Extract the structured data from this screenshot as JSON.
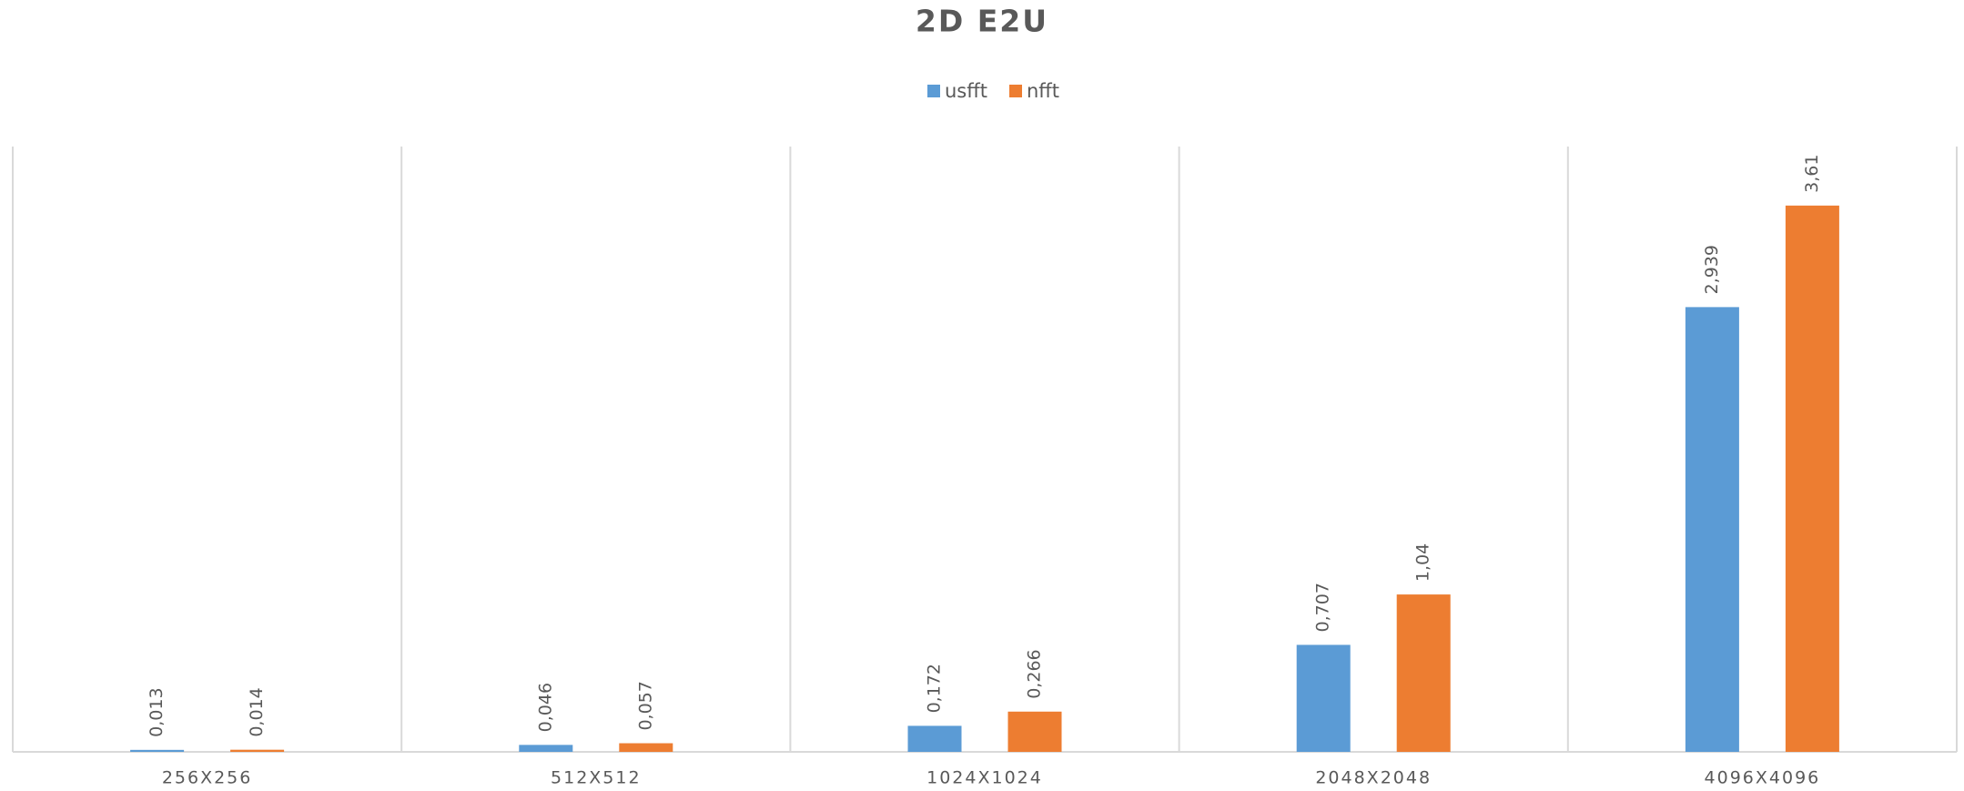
{
  "chart_data": {
    "type": "bar",
    "title": "2D E2U",
    "categories": [
      "256X256",
      "512X512",
      "1024X1024",
      "2048X2048",
      "4096X4096"
    ],
    "series": [
      {
        "name": "usfft",
        "color": "#5b9bd5",
        "values": [
          0.013,
          0.046,
          0.172,
          0.707,
          2.939
        ],
        "value_labels": [
          "0,013",
          "0,046",
          "0,172",
          "0,707",
          "2,939"
        ]
      },
      {
        "name": "nfft",
        "color": "#ed7d31",
        "values": [
          0.014,
          0.057,
          0.266,
          1.04,
          3.61
        ],
        "value_labels": [
          "0,014",
          "0,057",
          "0,266",
          "1,04",
          "3,61"
        ]
      }
    ],
    "ylim": [
      0,
      4
    ],
    "legend": "top"
  }
}
